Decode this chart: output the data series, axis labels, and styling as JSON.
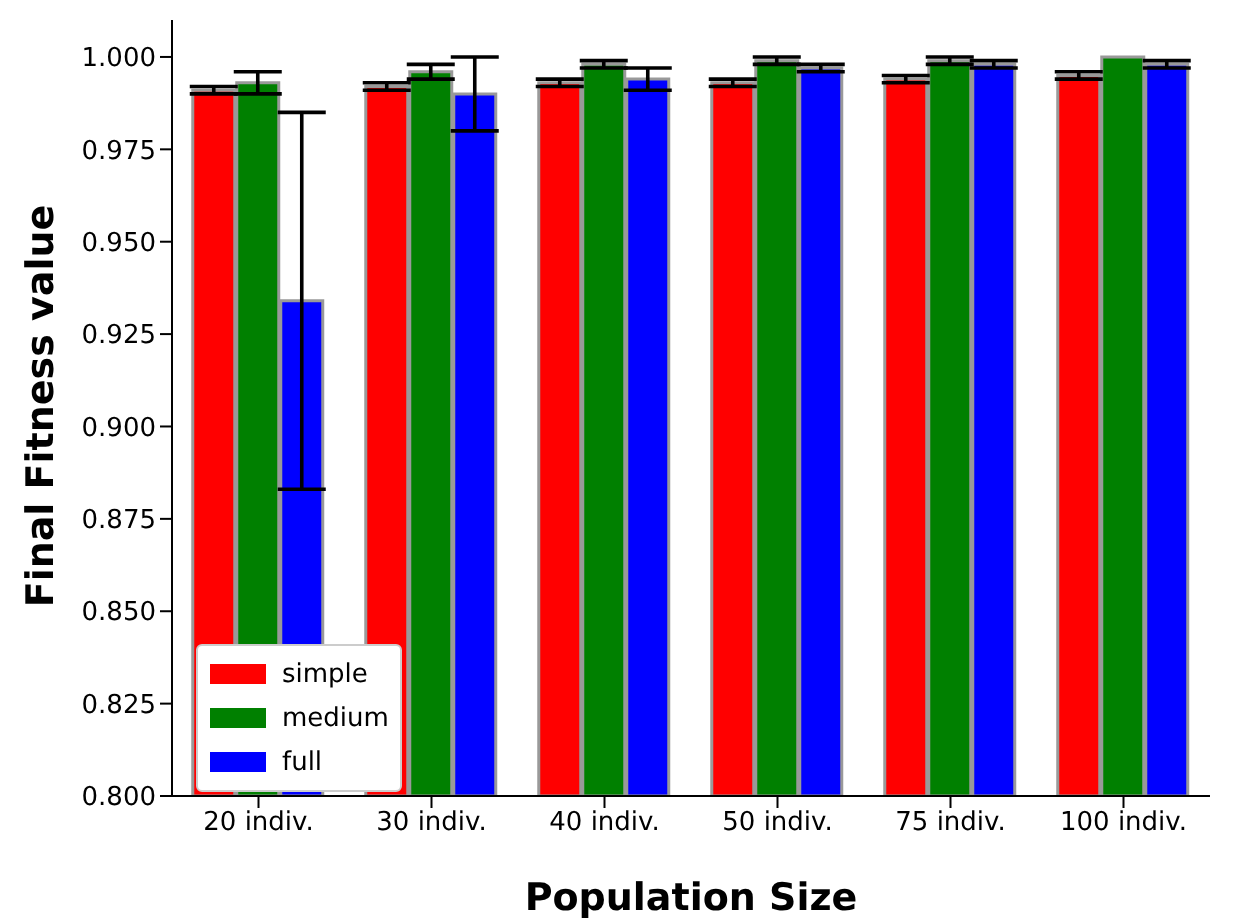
{
  "chart_data": {
    "type": "bar",
    "xlabel": "Population Size",
    "ylabel": "Final Fitness value",
    "categories": [
      "20 indiv.",
      "30 indiv.",
      "40 indiv.",
      "50 indiv.",
      "75 indiv.",
      "100 indiv."
    ],
    "series": [
      {
        "name": "simple",
        "color": "#ff0000",
        "values": [
          0.991,
          0.992,
          0.993,
          0.993,
          0.994,
          0.995
        ],
        "errors": [
          0.001,
          0.001,
          0.001,
          0.001,
          0.001,
          0.001
        ]
      },
      {
        "name": "medium",
        "color": "#008000",
        "values": [
          0.993,
          0.996,
          0.998,
          0.999,
          0.999,
          1.0
        ],
        "errors": [
          0.003,
          0.002,
          0.001,
          0.001,
          0.001,
          0.0
        ]
      },
      {
        "name": "full",
        "color": "#0000ff",
        "values": [
          0.934,
          0.99,
          0.994,
          0.997,
          0.998,
          0.998
        ],
        "errors": [
          0.051,
          0.01,
          0.003,
          0.001,
          0.001,
          0.001
        ]
      }
    ],
    "ylim": [
      0.8,
      1.01
    ],
    "yticks": [
      {
        "value": 0.8,
        "label": "0.800"
      },
      0.825,
      {
        "value": 0.85,
        "label": "0.850"
      },
      0.875,
      {
        "value": 0.9,
        "label": "0.900"
      },
      0.925,
      {
        "value": 0.95,
        "label": "0.950"
      },
      0.975,
      {
        "value": 1.0,
        "label": "1.000"
      }
    ],
    "legend": "bottom left"
  }
}
